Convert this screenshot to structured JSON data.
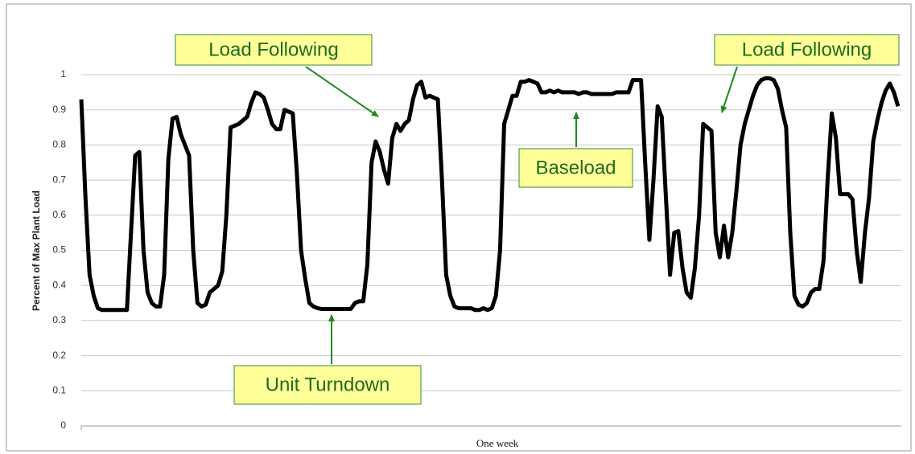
{
  "chart_data": {
    "type": "line",
    "y_label": "Percent of Max Plant Load",
    "x_label": "One week",
    "annotations": [
      "Load Following",
      "Load Following",
      "Baseload",
      "Unit Turndown"
    ],
    "series": [
      {
        "name": "Plant load",
        "color": "#000000",
        "values": [
          0.93,
          0.65,
          0.43,
          0.37,
          0.335,
          0.33,
          0.33,
          0.33,
          0.33,
          0.33,
          0.33,
          0.33,
          0.55,
          0.77,
          0.78,
          0.5,
          0.38,
          0.35,
          0.34,
          0.34,
          0.43,
          0.76,
          0.875,
          0.88,
          0.83,
          0.8,
          0.77,
          0.5,
          0.35,
          0.34,
          0.345,
          0.38,
          0.39,
          0.4,
          0.44,
          0.6,
          0.85,
          0.855,
          0.86,
          0.87,
          0.88,
          0.92,
          0.95,
          0.945,
          0.935,
          0.9,
          0.86,
          0.845,
          0.845,
          0.9,
          0.895,
          0.89,
          0.72,
          0.5,
          0.42,
          0.35,
          0.34,
          0.335,
          0.333,
          0.333,
          0.333,
          0.333,
          0.333,
          0.333,
          0.333,
          0.333,
          0.35,
          0.355,
          0.355,
          0.46,
          0.75,
          0.81,
          0.78,
          0.73,
          0.69,
          0.82,
          0.86,
          0.84,
          0.86,
          0.87,
          0.93,
          0.97,
          0.98,
          0.935,
          0.94,
          0.935,
          0.93,
          0.7,
          0.43,
          0.37,
          0.34,
          0.335,
          0.335,
          0.335,
          0.335,
          0.33,
          0.33,
          0.335,
          0.33,
          0.335,
          0.37,
          0.5,
          0.86,
          0.9,
          0.94,
          0.94,
          0.98,
          0.98,
          0.985,
          0.98,
          0.975,
          0.95,
          0.95,
          0.955,
          0.95,
          0.955,
          0.95,
          0.95,
          0.95,
          0.95,
          0.945,
          0.95,
          0.95,
          0.945,
          0.945,
          0.945,
          0.945,
          0.945,
          0.945,
          0.95,
          0.95,
          0.95,
          0.95,
          0.985,
          0.985,
          0.985,
          0.75,
          0.53,
          0.7,
          0.91,
          0.88,
          0.65,
          0.43,
          0.55,
          0.555,
          0.45,
          0.38,
          0.365,
          0.45,
          0.6,
          0.86,
          0.85,
          0.84,
          0.55,
          0.48,
          0.57,
          0.48,
          0.55,
          0.67,
          0.8,
          0.86,
          0.9,
          0.94,
          0.97,
          0.985,
          0.99,
          0.99,
          0.985,
          0.96,
          0.9,
          0.85,
          0.55,
          0.37,
          0.345,
          0.34,
          0.35,
          0.38,
          0.39,
          0.39,
          0.47,
          0.7,
          0.89,
          0.82,
          0.66,
          0.66,
          0.66,
          0.645,
          0.5,
          0.41,
          0.55,
          0.65,
          0.81,
          0.87,
          0.92,
          0.955,
          0.975,
          0.95,
          0.91
        ]
      }
    ],
    "ylim": [
      0,
      1
    ],
    "yticks": [
      0,
      0.1,
      0.2,
      0.3,
      0.4,
      0.5,
      0.6,
      0.7,
      0.8,
      0.9,
      1
    ],
    "grid": true
  }
}
